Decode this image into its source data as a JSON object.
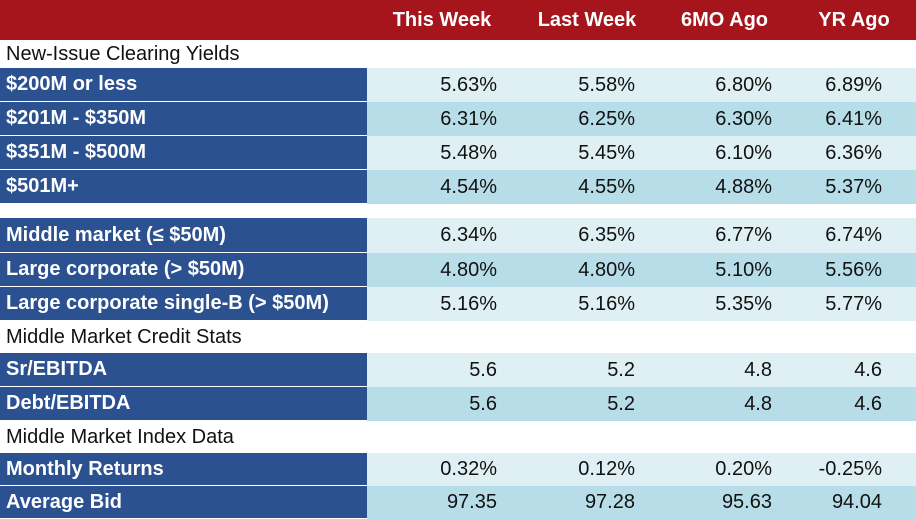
{
  "header": {
    "columns": [
      "This Week",
      "Last Week",
      "6MO Ago",
      "YR Ago"
    ]
  },
  "sections": {
    "clearing": "New-Issue Clearing Yields",
    "credit": "Middle Market Credit Stats",
    "index": "Middle Market Index Data"
  },
  "rows": {
    "r1": {
      "label": "$200M or less",
      "values": [
        "5.63%",
        "5.58%",
        "6.80%",
        "6.89%"
      ]
    },
    "r2": {
      "label": "$201M - $350M",
      "values": [
        "6.31%",
        "6.25%",
        "6.30%",
        "6.41%"
      ]
    },
    "r3": {
      "label": "$351M - $500M",
      "values": [
        "5.48%",
        "5.45%",
        "6.10%",
        "6.36%"
      ]
    },
    "r4": {
      "label": "$501M+",
      "values": [
        "4.54%",
        "4.55%",
        "4.88%",
        "5.37%"
      ]
    },
    "r5": {
      "label": "Middle market (≤ $50M)",
      "values": [
        "6.34%",
        "6.35%",
        "6.77%",
        "6.74%"
      ]
    },
    "r6": {
      "label": "Large corporate (> $50M)",
      "values": [
        "4.80%",
        "4.80%",
        "5.10%",
        "5.56%"
      ]
    },
    "r7": {
      "label": "Large corporate single-B (> $50M)",
      "values": [
        "5.16%",
        "5.16%",
        "5.35%",
        "5.77%"
      ]
    },
    "r8": {
      "label": "Sr/EBITDA",
      "values": [
        "5.6",
        "5.2",
        "4.8",
        "4.6"
      ]
    },
    "r9": {
      "label": "Debt/EBITDA",
      "values": [
        "5.6",
        "5.2",
        "4.8",
        "4.6"
      ]
    },
    "r10": {
      "label": "Monthly Returns",
      "values": [
        "0.32%",
        "0.12%",
        "0.20%",
        "-0.25%"
      ]
    },
    "r11": {
      "label": "Average Bid",
      "values": [
        "97.35",
        "97.28",
        "95.63",
        "94.04"
      ]
    }
  }
}
